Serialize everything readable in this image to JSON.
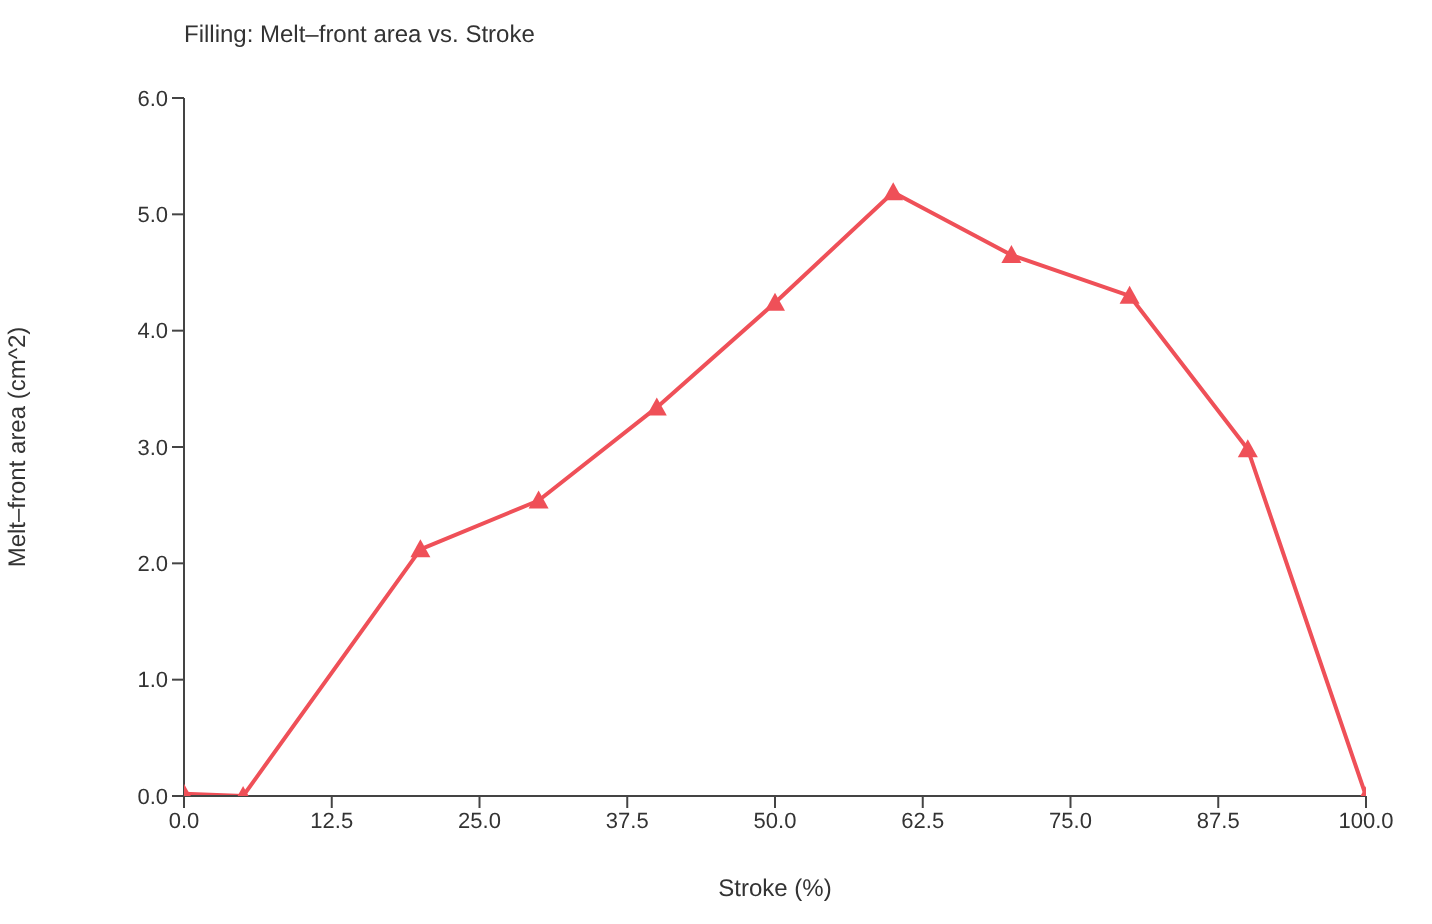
{
  "chart_data": {
    "type": "line",
    "title": "Filling: Melt–front area vs. Stroke",
    "xlabel": "Stroke (%)",
    "ylabel": "Melt–front area (cm^2)",
    "x": [
      0,
      5,
      20,
      30,
      40,
      50,
      60,
      70,
      80,
      90,
      100
    ],
    "series": [
      {
        "color": "#ef5058",
        "values": [
          0.02,
          0,
          2.12,
          2.54,
          3.34,
          4.24,
          5.19,
          4.65,
          4.3,
          2.98,
          0
        ]
      }
    ],
    "xlim": [
      0,
      100
    ],
    "ylim": [
      0,
      6
    ],
    "xticks": [
      {
        "value": 0,
        "label": "0.0"
      },
      12.5,
      {
        "value": 25,
        "label": "25.0"
      },
      37.5,
      {
        "value": 50,
        "label": "50.0"
      },
      62.5,
      {
        "value": 75,
        "label": "75.0"
      },
      87.5,
      {
        "value": 100,
        "label": "100.0"
      }
    ],
    "yticks": [
      {
        "value": 0,
        "label": "0.0"
      },
      {
        "value": 1,
        "label": "1.0"
      },
      {
        "value": 2,
        "label": "2.0"
      },
      {
        "value": 3,
        "label": "3.0"
      },
      {
        "value": 4,
        "label": "4.0"
      },
      {
        "value": 5,
        "label": "5.0"
      },
      {
        "value": 6,
        "label": "6.0"
      }
    ],
    "marker": "triangle",
    "line_style": "solid",
    "grid": false
  }
}
